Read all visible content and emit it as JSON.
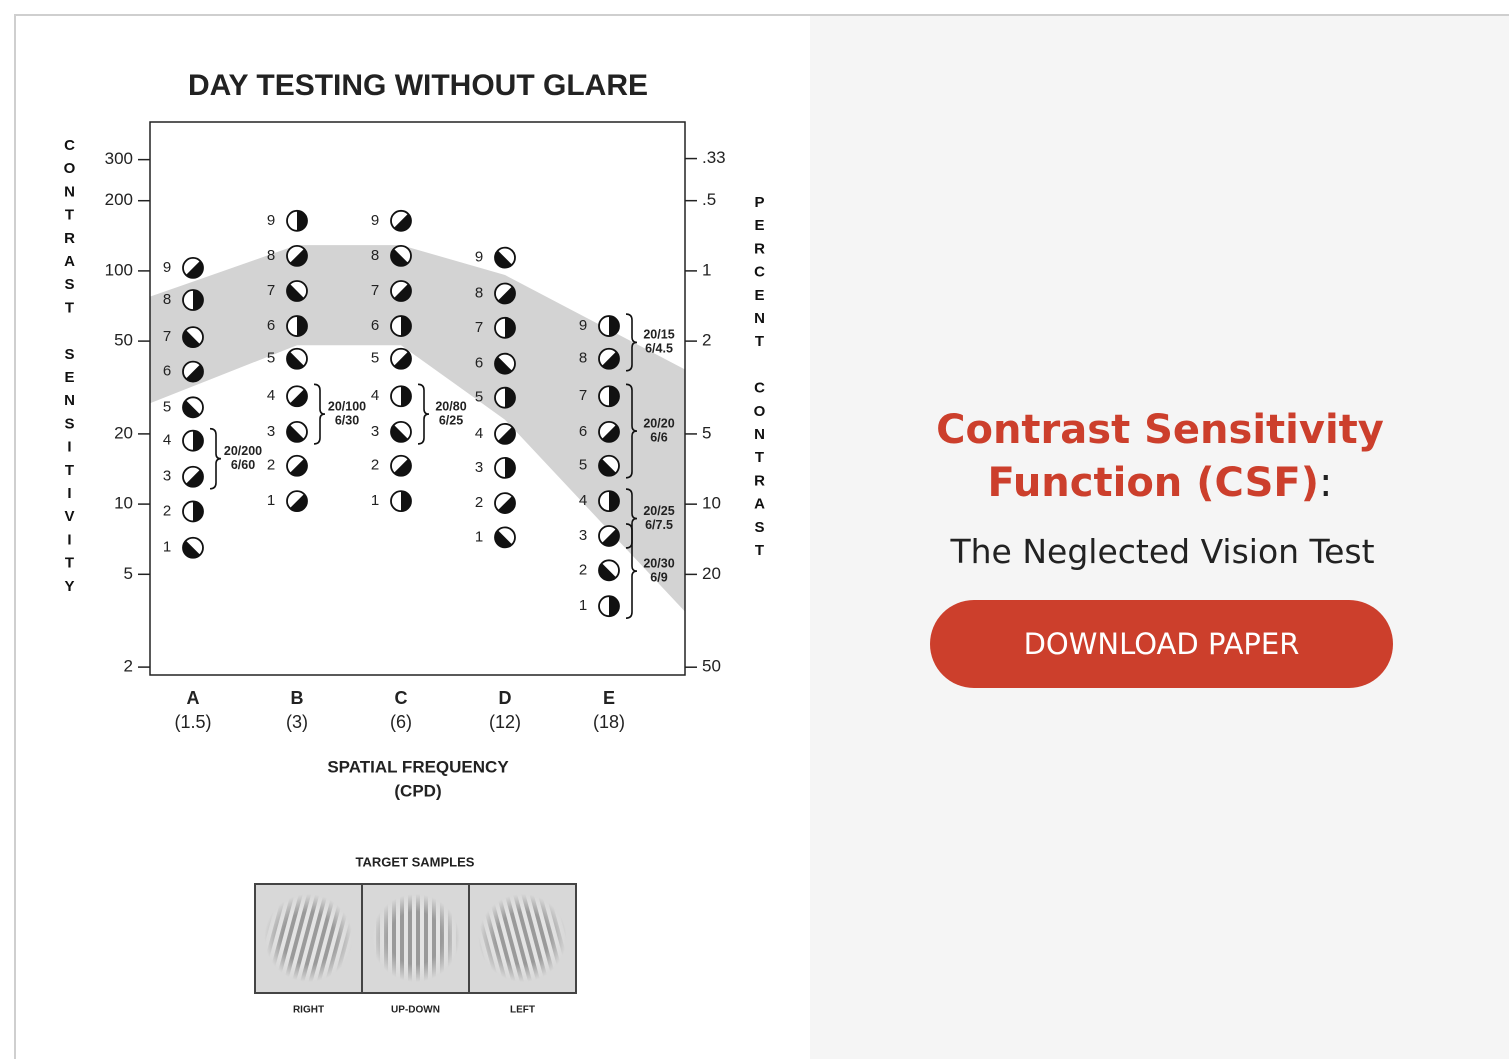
{
  "chart_data": {
    "type": "patch-chart",
    "title": "DAY TESTING WITHOUT GLARE",
    "y_label": "CONTRAST SENSITIVITY",
    "y2_label": "PERCENT CONTRAST",
    "x_label": "SPATIAL FREQUENCY",
    "x_unit": "(CPD)",
    "categories": [
      "A",
      "B",
      "C",
      "D",
      "E"
    ],
    "frequencies": [
      {
        "value": 1.5,
        "label": "(1.5)"
      },
      {
        "value": 3,
        "label": "(3)"
      },
      {
        "value": 6,
        "label": "(6)"
      },
      {
        "value": 12,
        "label": "(12)"
      },
      {
        "value": 18,
        "label": "(18)"
      }
    ],
    "levels": [
      1,
      2,
      3,
      4,
      5,
      6,
      7,
      8,
      9
    ],
    "values": [
      [
        6.5,
        9.3,
        13.1,
        18.7,
        26,
        37,
        52,
        75,
        103
      ],
      [
        10.3,
        14.6,
        20.4,
        29,
        42,
        58,
        82,
        116,
        164
      ],
      [
        10.3,
        14.6,
        20.4,
        29,
        42,
        58,
        82,
        116,
        164
      ],
      [
        7.2,
        10.1,
        14.3,
        20,
        28.6,
        40,
        57,
        80,
        114
      ],
      [
        3.65,
        5.2,
        7.3,
        10.3,
        14.6,
        20.4,
        29,
        42,
        58
      ]
    ],
    "normal_range": {
      "upper": [
        90,
        129,
        129,
        96,
        56
      ],
      "lower": [
        32,
        48,
        48,
        23,
        7.7
      ]
    },
    "y_scale": "log",
    "ylim": [
      1.85,
      435
    ],
    "yticks": [
      2,
      5,
      10,
      20,
      50,
      100,
      200,
      300
    ],
    "y2_scale": "log",
    "y2lim": [
      54,
      0.23
    ],
    "y2ticks": [
      {
        "value": 0.33,
        "label": ".33"
      },
      {
        "value": 0.5,
        "label": ".5"
      },
      1,
      2,
      5,
      10,
      20,
      50
    ],
    "annotations": [
      {
        "column": "A",
        "levels": [
          3,
          4
        ],
        "text": [
          "20/200",
          "6/60"
        ]
      },
      {
        "column": "B",
        "levels": [
          3,
          4
        ],
        "text": [
          "20/100",
          "6/30"
        ]
      },
      {
        "column": "C",
        "levels": [
          3,
          4
        ],
        "text": [
          "20/80",
          "6/25"
        ]
      },
      {
        "column": "E",
        "levels": [
          8,
          9
        ],
        "text": [
          "20/15",
          "6/4.5"
        ]
      },
      {
        "column": "E",
        "levels": [
          5,
          7
        ],
        "text": [
          "20/20",
          "6/6"
        ]
      },
      {
        "column": "E",
        "levels": [
          3,
          4
        ],
        "text": [
          "20/25",
          "6/7.5"
        ]
      },
      {
        "column": "E",
        "levels": [
          1,
          3
        ],
        "text": [
          "20/30",
          "6/9"
        ]
      }
    ]
  },
  "samples": {
    "title": "TARGET SAMPLES",
    "labels": [
      "RIGHT",
      "UP-DOWN",
      "LEFT"
    ]
  },
  "panel": {
    "title": "Contrast Sensitivity Function (CSF)",
    "colon": ":",
    "subtitle": "The Neglected Vision Test",
    "button": "DOWNLOAD PAPER"
  }
}
